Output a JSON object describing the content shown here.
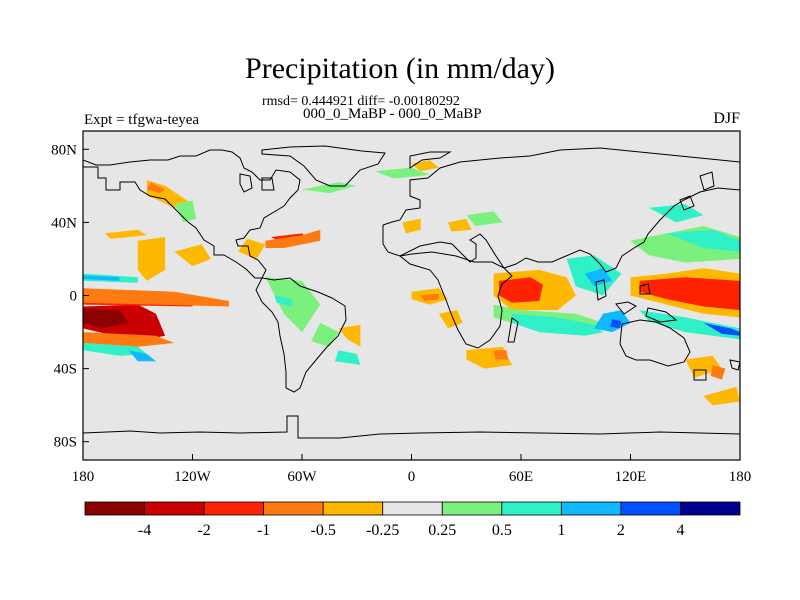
{
  "title": "Precipitation (in mm/day)",
  "stats_line": "rmsd= 0.444921 diff= -0.00180292",
  "comparison_line": "000_0_MaBP - 000_0_MaBP",
  "experiment_label": "Expt = tfgwa-teyea",
  "season_label": "DJF",
  "map": {
    "projection": "cylindrical-equidistant",
    "background_color": "#e6e6e6",
    "x_ticks": [
      {
        "lon": -180,
        "label": "180"
      },
      {
        "lon": -120,
        "label": "120W"
      },
      {
        "lon": -60,
        "label": "60W"
      },
      {
        "lon": 0,
        "label": "0"
      },
      {
        "lon": 60,
        "label": "60E"
      },
      {
        "lon": 120,
        "label": "120E"
      },
      {
        "lon": 180,
        "label": "180"
      }
    ],
    "y_ticks": [
      {
        "lat": 80,
        "label": "80N"
      },
      {
        "lat": 40,
        "label": "40N"
      },
      {
        "lat": 0,
        "label": "0"
      },
      {
        "lat": -40,
        "label": "40S"
      },
      {
        "lat": -80,
        "label": "80S"
      }
    ],
    "lat_range": [
      -90,
      90
    ],
    "lon_range": [
      -180,
      180
    ]
  },
  "colorbar": {
    "colors": [
      "#8b0000",
      "#cc0000",
      "#ff2200",
      "#ff7a10",
      "#ffb800",
      "#e6e6e6",
      "#7cf07c",
      "#30f0c8",
      "#10b8ff",
      "#0050ff",
      "#000090"
    ],
    "labels": [
      "-4",
      "-2",
      "-1",
      "-0.5",
      "-0.25",
      "0.25",
      "0.5",
      "1",
      "2",
      "4"
    ]
  },
  "anomaly_regions": [
    {
      "level": 1,
      "points": [
        [
          -180,
          -6
        ],
        [
          -150,
          -5
        ],
        [
          -140,
          -10
        ],
        [
          -135,
          -22
        ],
        [
          -150,
          -25
        ],
        [
          -180,
          -18
        ]
      ]
    },
    {
      "level": 0,
      "points": [
        [
          -180,
          -7
        ],
        [
          -160,
          -8
        ],
        [
          -155,
          -15
        ],
        [
          -170,
          -18
        ],
        [
          -180,
          -15
        ]
      ]
    },
    {
      "level": 2,
      "points": [
        [
          -180,
          2
        ],
        [
          -140,
          0
        ],
        [
          -120,
          -2
        ],
        [
          -120,
          -6
        ],
        [
          -180,
          -5
        ]
      ]
    },
    {
      "level": 3,
      "points": [
        [
          -180,
          4
        ],
        [
          -130,
          2
        ],
        [
          -100,
          -3
        ],
        [
          -100,
          -6
        ],
        [
          -180,
          -4
        ]
      ]
    },
    {
      "level": 3,
      "points": [
        [
          -180,
          -20
        ],
        [
          -140,
          -22
        ],
        [
          -130,
          -26
        ],
        [
          -150,
          -28
        ],
        [
          -180,
          -26
        ]
      ]
    },
    {
      "level": 7,
      "points": [
        [
          -180,
          -26
        ],
        [
          -150,
          -28
        ],
        [
          -145,
          -32
        ],
        [
          -160,
          -33
        ],
        [
          -180,
          -30
        ]
      ]
    },
    {
      "level": 7,
      "points": [
        [
          -180,
          12
        ],
        [
          -150,
          10
        ],
        [
          -150,
          7
        ],
        [
          -180,
          8
        ]
      ]
    },
    {
      "level": 8,
      "points": [
        [
          -180,
          11
        ],
        [
          -160,
          10
        ],
        [
          -160,
          8
        ],
        [
          -180,
          9
        ]
      ]
    },
    {
      "level": 8,
      "points": [
        [
          -155,
          -30
        ],
        [
          -145,
          -32
        ],
        [
          -140,
          -36
        ],
        [
          -150,
          -36
        ]
      ]
    },
    {
      "level": 4,
      "points": [
        [
          -168,
          34
        ],
        [
          -150,
          36
        ],
        [
          -145,
          33
        ],
        [
          -165,
          31
        ]
      ]
    },
    {
      "level": 4,
      "points": [
        [
          -150,
          30
        ],
        [
          -135,
          32
        ],
        [
          -135,
          14
        ],
        [
          -145,
          8
        ],
        [
          -150,
          14
        ]
      ]
    },
    {
      "level": 4,
      "points": [
        [
          -130,
          24
        ],
        [
          -115,
          28
        ],
        [
          -110,
          20
        ],
        [
          -120,
          16
        ]
      ]
    },
    {
      "level": 4,
      "points": [
        [
          -145,
          63
        ],
        [
          -135,
          60
        ],
        [
          -120,
          50
        ],
        [
          -130,
          48
        ],
        [
          -145,
          55
        ]
      ]
    },
    {
      "level": 3,
      "points": [
        [
          -143,
          62
        ],
        [
          -135,
          58
        ],
        [
          -138,
          56
        ],
        [
          -145,
          58
        ]
      ]
    },
    {
      "level": 6,
      "points": [
        [
          -130,
          50
        ],
        [
          -120,
          52
        ],
        [
          -118,
          42
        ],
        [
          -125,
          40
        ]
      ]
    },
    {
      "level": 2,
      "points": [
        [
          -77,
          32
        ],
        [
          -60,
          34
        ],
        [
          -55,
          30
        ],
        [
          -70,
          28
        ]
      ]
    },
    {
      "level": 3,
      "points": [
        [
          -80,
          30
        ],
        [
          -60,
          33
        ],
        [
          -50,
          36
        ],
        [
          -50,
          30
        ],
        [
          -70,
          26
        ],
        [
          -80,
          26
        ]
      ]
    },
    {
      "level": 4,
      "points": [
        [
          -90,
          31
        ],
        [
          -80,
          28
        ],
        [
          -85,
          20
        ],
        [
          -95,
          24
        ]
      ]
    },
    {
      "level": 6,
      "points": [
        [
          -80,
          10
        ],
        [
          -60,
          8
        ],
        [
          -50,
          -5
        ],
        [
          -60,
          -20
        ],
        [
          -70,
          -10
        ]
      ]
    },
    {
      "level": 7,
      "points": [
        [
          -75,
          0
        ],
        [
          -65,
          -2
        ],
        [
          -66,
          -6
        ],
        [
          -74,
          -4
        ]
      ]
    },
    {
      "level": 6,
      "points": [
        [
          -50,
          -15
        ],
        [
          -40,
          -20
        ],
        [
          -45,
          -28
        ],
        [
          -55,
          -25
        ]
      ]
    },
    {
      "level": 7,
      "points": [
        [
          -40,
          -30
        ],
        [
          -30,
          -32
        ],
        [
          -28,
          -38
        ],
        [
          -42,
          -36
        ]
      ]
    },
    {
      "level": 4,
      "points": [
        [
          -40,
          -18
        ],
        [
          -28,
          -16
        ],
        [
          -28,
          -28
        ],
        [
          -35,
          -24
        ]
      ]
    },
    {
      "level": 6,
      "points": [
        [
          -60,
          58
        ],
        [
          -40,
          62
        ],
        [
          -30,
          60
        ],
        [
          -45,
          56
        ]
      ]
    },
    {
      "level": 6,
      "points": [
        [
          -20,
          68
        ],
        [
          0,
          70
        ],
        [
          10,
          66
        ],
        [
          -10,
          64
        ]
      ]
    },
    {
      "level": 4,
      "points": [
        [
          0,
          72
        ],
        [
          10,
          74
        ],
        [
          15,
          70
        ],
        [
          5,
          68
        ]
      ]
    },
    {
      "level": 4,
      "points": [
        [
          -5,
          40
        ],
        [
          5,
          42
        ],
        [
          5,
          36
        ],
        [
          -3,
          34
        ]
      ]
    },
    {
      "level": 6,
      "points": [
        [
          30,
          44
        ],
        [
          45,
          46
        ],
        [
          50,
          40
        ],
        [
          35,
          38
        ]
      ]
    },
    {
      "level": 4,
      "points": [
        [
          20,
          40
        ],
        [
          30,
          42
        ],
        [
          33,
          36
        ],
        [
          22,
          35
        ]
      ]
    },
    {
      "level": 4,
      "points": [
        [
          0,
          2
        ],
        [
          15,
          4
        ],
        [
          20,
          -2
        ],
        [
          10,
          -5
        ],
        [
          0,
          -2
        ]
      ]
    },
    {
      "level": 3,
      "points": [
        [
          5,
          0
        ],
        [
          15,
          1
        ],
        [
          15,
          -2
        ],
        [
          7,
          -3
        ]
      ]
    },
    {
      "level": 4,
      "points": [
        [
          15,
          -10
        ],
        [
          25,
          -8
        ],
        [
          28,
          -15
        ],
        [
          20,
          -18
        ]
      ]
    },
    {
      "level": 4,
      "points": [
        [
          30,
          -30
        ],
        [
          50,
          -28
        ],
        [
          55,
          -38
        ],
        [
          40,
          -40
        ],
        [
          30,
          -35
        ]
      ]
    },
    {
      "level": 3,
      "points": [
        [
          45,
          -30
        ],
        [
          52,
          -30
        ],
        [
          53,
          -35
        ],
        [
          46,
          -35
        ]
      ]
    },
    {
      "level": 4,
      "points": [
        [
          45,
          12
        ],
        [
          70,
          14
        ],
        [
          85,
          10
        ],
        [
          90,
          0
        ],
        [
          80,
          -8
        ],
        [
          55,
          -8
        ],
        [
          45,
          0
        ]
      ]
    },
    {
      "level": 2,
      "points": [
        [
          48,
          8
        ],
        [
          65,
          10
        ],
        [
          72,
          6
        ],
        [
          70,
          -3
        ],
        [
          55,
          -4
        ],
        [
          48,
          0
        ]
      ]
    },
    {
      "level": 6,
      "points": [
        [
          45,
          -5
        ],
        [
          60,
          -8
        ],
        [
          90,
          -10
        ],
        [
          105,
          -15
        ],
        [
          100,
          -20
        ],
        [
          80,
          -18
        ],
        [
          55,
          -15
        ],
        [
          45,
          -12
        ]
      ]
    },
    {
      "level": 7,
      "points": [
        [
          55,
          -10
        ],
        [
          80,
          -12
        ],
        [
          100,
          -16
        ],
        [
          105,
          -20
        ],
        [
          95,
          -22
        ],
        [
          70,
          -20
        ],
        [
          55,
          -15
        ]
      ]
    },
    {
      "level": 8,
      "points": [
        [
          105,
          -10
        ],
        [
          115,
          -8
        ],
        [
          120,
          -15
        ],
        [
          110,
          -20
        ],
        [
          100,
          -18
        ]
      ]
    },
    {
      "level": 9,
      "points": [
        [
          110,
          -13
        ],
        [
          115,
          -14
        ],
        [
          114,
          -18
        ],
        [
          109,
          -17
        ]
      ]
    },
    {
      "level": 7,
      "points": [
        [
          85,
          20
        ],
        [
          100,
          22
        ],
        [
          115,
          12
        ],
        [
          105,
          0
        ],
        [
          90,
          5
        ]
      ]
    },
    {
      "level": 8,
      "points": [
        [
          95,
          12
        ],
        [
          105,
          15
        ],
        [
          110,
          8
        ],
        [
          100,
          5
        ]
      ]
    },
    {
      "level": 6,
      "points": [
        [
          120,
          30
        ],
        [
          140,
          34
        ],
        [
          160,
          38
        ],
        [
          180,
          32
        ],
        [
          180,
          20
        ],
        [
          150,
          18
        ],
        [
          130,
          22
        ]
      ]
    },
    {
      "level": 7,
      "points": [
        [
          130,
          48
        ],
        [
          150,
          50
        ],
        [
          160,
          44
        ],
        [
          145,
          40
        ]
      ]
    },
    {
      "level": 7,
      "points": [
        [
          140,
          34
        ],
        [
          165,
          36
        ],
        [
          180,
          30
        ],
        [
          180,
          24
        ],
        [
          160,
          26
        ]
      ]
    },
    {
      "level": 4,
      "points": [
        [
          120,
          10
        ],
        [
          140,
          12
        ],
        [
          160,
          15
        ],
        [
          180,
          12
        ],
        [
          180,
          -12
        ],
        [
          160,
          -10
        ],
        [
          140,
          -5
        ],
        [
          120,
          0
        ]
      ]
    },
    {
      "level": 2,
      "points": [
        [
          125,
          8
        ],
        [
          150,
          10
        ],
        [
          180,
          8
        ],
        [
          180,
          -8
        ],
        [
          160,
          -6
        ],
        [
          140,
          -2
        ],
        [
          125,
          2
        ]
      ]
    },
    {
      "level": 7,
      "points": [
        [
          125,
          -8
        ],
        [
          150,
          -12
        ],
        [
          180,
          -18
        ],
        [
          180,
          -24
        ],
        [
          150,
          -20
        ],
        [
          130,
          -14
        ]
      ]
    },
    {
      "level": 9,
      "points": [
        [
          160,
          -15
        ],
        [
          175,
          -18
        ],
        [
          180,
          -20
        ],
        [
          180,
          -22
        ],
        [
          170,
          -21
        ]
      ]
    },
    {
      "level": 4,
      "points": [
        [
          150,
          -35
        ],
        [
          165,
          -33
        ],
        [
          170,
          -40
        ],
        [
          155,
          -45
        ]
      ]
    },
    {
      "level": 3,
      "points": [
        [
          165,
          -38
        ],
        [
          172,
          -40
        ],
        [
          170,
          -46
        ],
        [
          164,
          -44
        ]
      ]
    },
    {
      "level": 4,
      "points": [
        [
          160,
          -55
        ],
        [
          178,
          -50
        ],
        [
          180,
          -58
        ],
        [
          165,
          -60
        ]
      ]
    }
  ]
}
